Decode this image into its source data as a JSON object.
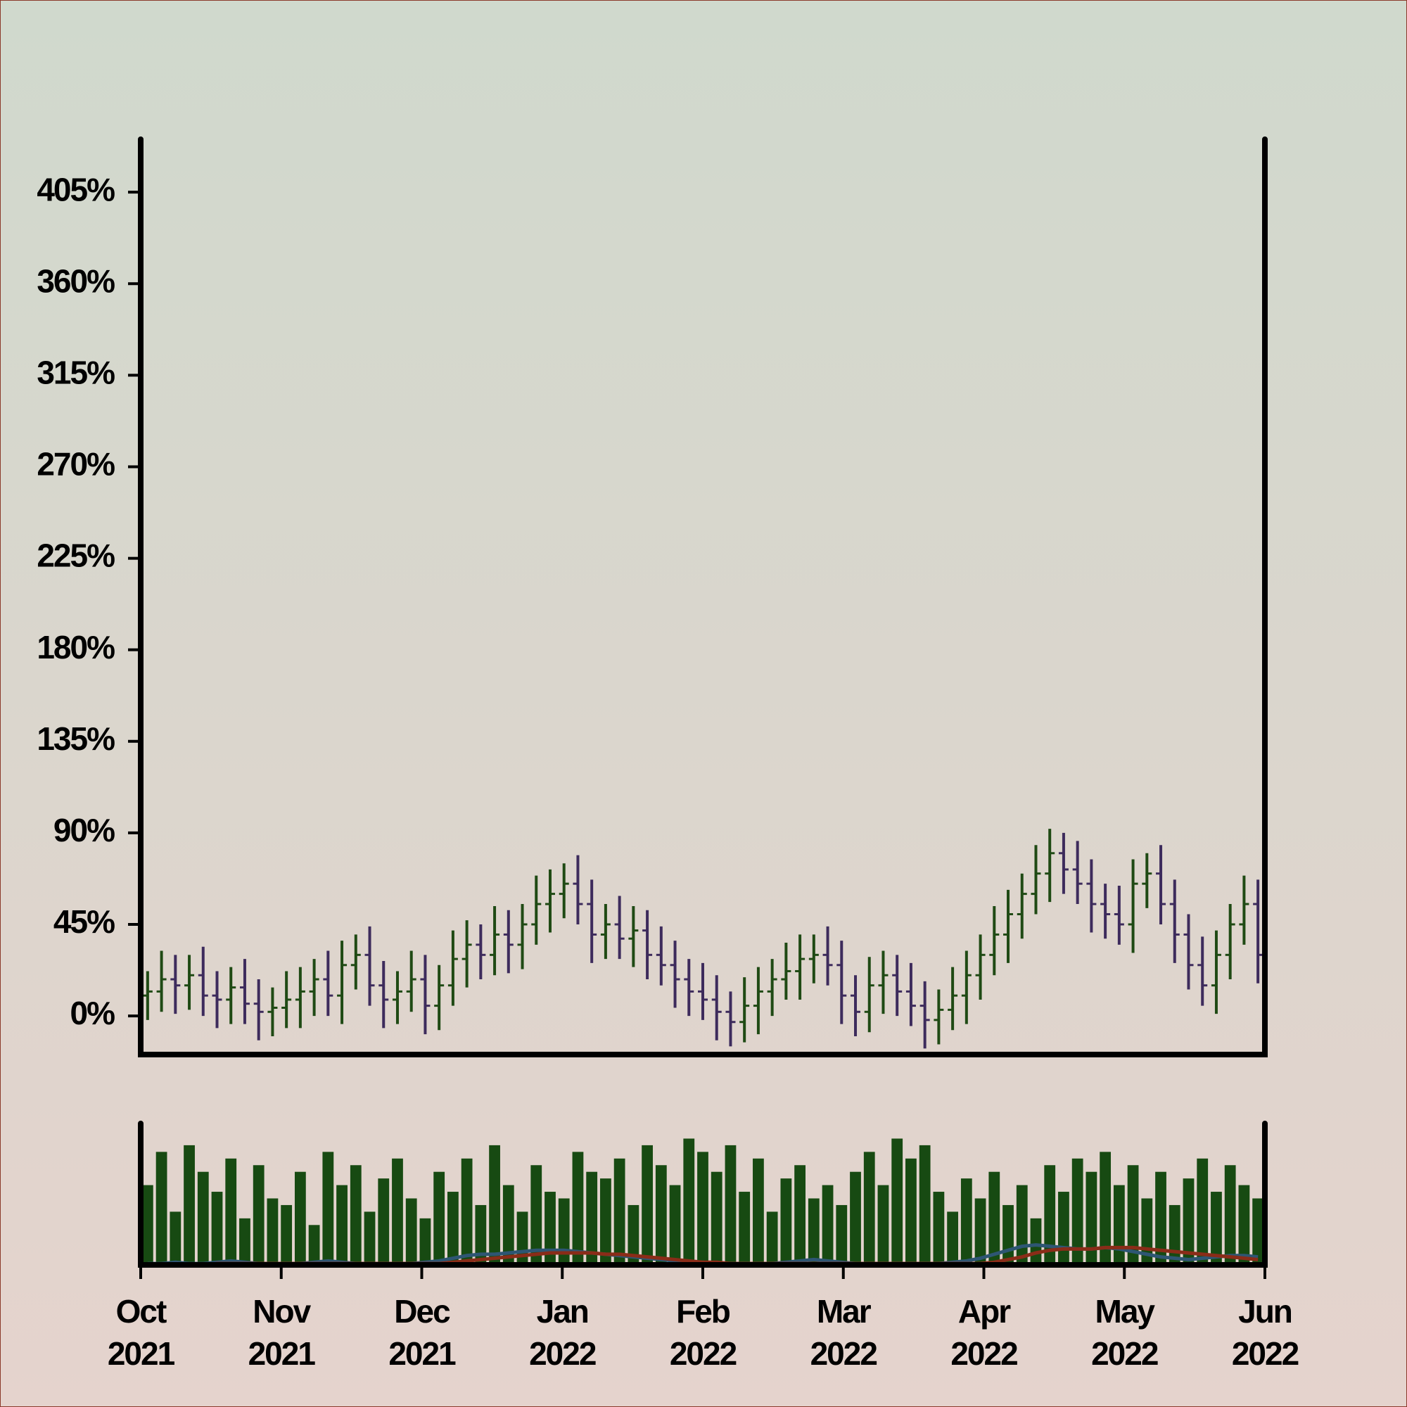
{
  "chart_data": {
    "type": "ohlc",
    "ylim": [
      -19,
      431
    ],
    "yticks": [
      {
        "value": 0,
        "label": "0%"
      },
      {
        "value": 45,
        "label": "45%"
      },
      {
        "value": 90,
        "label": "90%"
      },
      {
        "value": 135,
        "label": "135%"
      },
      {
        "value": 180,
        "label": "180%"
      },
      {
        "value": 225,
        "label": "225%"
      },
      {
        "value": 270,
        "label": "270%"
      },
      {
        "value": 315,
        "label": "315%"
      },
      {
        "value": 360,
        "label": "360%"
      },
      {
        "value": 405,
        "label": "405%"
      }
    ],
    "xlim": [
      "2021-10",
      "2022-06"
    ],
    "xticks": [
      {
        "value": "2021-10",
        "label": [
          "Oct",
          "2021"
        ]
      },
      {
        "value": "2021-11",
        "label": [
          "Nov",
          "2021"
        ]
      },
      {
        "value": "2021-12",
        "label": [
          "Dec",
          "2021"
        ]
      },
      {
        "value": "2022-01",
        "label": [
          "Jan",
          "2022"
        ]
      },
      {
        "value": "2022-02",
        "label": [
          "Feb",
          "2022"
        ]
      },
      {
        "value": "2022-03",
        "label": [
          "Mar",
          "2022"
        ]
      },
      {
        "value": "2022-04",
        "label": [
          "Apr",
          "2022"
        ]
      },
      {
        "value": "2022-05",
        "label": [
          "May",
          "2022"
        ]
      },
      {
        "value": "2022-06",
        "label": [
          "Jun",
          "2022"
        ]
      }
    ],
    "up_color": "#1f4a14",
    "down_color": "#3d2b5c",
    "open": [
      10,
      12,
      18,
      15,
      20,
      10,
      8,
      14,
      6,
      2,
      4,
      8,
      12,
      18,
      10,
      25,
      30,
      15,
      8,
      12,
      18,
      5,
      15,
      28,
      35,
      30,
      40,
      35,
      45,
      55,
      60,
      65,
      55,
      40,
      45,
      38,
      42,
      30,
      25,
      18,
      12,
      8,
      2,
      -3,
      5,
      12,
      18,
      22,
      28,
      30,
      25,
      10,
      2,
      15,
      20,
      12,
      5,
      -2,
      3,
      10,
      20,
      30,
      40,
      50,
      60,
      70,
      80,
      72,
      65,
      55,
      50,
      45,
      65,
      70,
      55,
      40,
      25,
      15,
      30,
      45,
      55
    ],
    "high": [
      22,
      32,
      30,
      30,
      34,
      22,
      24,
      28,
      18,
      14,
      22,
      24,
      28,
      32,
      37,
      40,
      44,
      27,
      22,
      32,
      30,
      25,
      42,
      47,
      45,
      54,
      52,
      55,
      69,
      72,
      75,
      79,
      67,
      55,
      59,
      54,
      52,
      44,
      37,
      28,
      26,
      20,
      12,
      19,
      24,
      28,
      36,
      40,
      40,
      44,
      37,
      20,
      29,
      32,
      30,
      26,
      17,
      13,
      24,
      32,
      40,
      54,
      62,
      70,
      84,
      92,
      90,
      86,
      77,
      65,
      64,
      77,
      80,
      84,
      67,
      50,
      39,
      42,
      55,
      69,
      67
    ],
    "low": [
      -2,
      2,
      1,
      3,
      0,
      -6,
      -4,
      -4,
      -12,
      -10,
      -6,
      -6,
      0,
      0,
      -4,
      13,
      5,
      -6,
      -4,
      2,
      -9,
      -7,
      5,
      14,
      18,
      20,
      21,
      23,
      35,
      41,
      48,
      45,
      26,
      28,
      28,
      24,
      18,
      15,
      4,
      0,
      -2,
      -12,
      -15,
      -13,
      -9,
      0,
      8,
      8,
      16,
      15,
      -4,
      -10,
      -8,
      1,
      0,
      -5,
      -16,
      -14,
      -7,
      -4,
      8,
      20,
      26,
      38,
      50,
      56,
      60,
      55,
      41,
      38,
      35,
      31,
      53,
      45,
      26,
      13,
      5,
      1,
      18,
      35,
      16
    ],
    "close": [
      12,
      18,
      15,
      20,
      10,
      8,
      14,
      6,
      2,
      4,
      8,
      12,
      18,
      10,
      25,
      30,
      15,
      8,
      12,
      18,
      5,
      15,
      28,
      35,
      30,
      40,
      35,
      45,
      55,
      60,
      65,
      55,
      40,
      45,
      38,
      42,
      30,
      25,
      18,
      12,
      8,
      2,
      -3,
      5,
      12,
      18,
      22,
      28,
      30,
      25,
      10,
      2,
      15,
      20,
      12,
      5,
      -2,
      3,
      10,
      20,
      30,
      40,
      50,
      60,
      70,
      80,
      72,
      65,
      55,
      50,
      45,
      65,
      70,
      55,
      40,
      25,
      15,
      30,
      45,
      55,
      30
    ],
    "volume": {
      "color": "#174a12",
      "ylim": [
        0,
        100
      ],
      "values": [
        60,
        85,
        40,
        90,
        70,
        55,
        80,
        35,
        75,
        50,
        45,
        70,
        30,
        85,
        60,
        75,
        40,
        65,
        80,
        50,
        35,
        70,
        55,
        80,
        45,
        90,
        60,
        40,
        75,
        55,
        50,
        85,
        70,
        65,
        80,
        45,
        90,
        75,
        60,
        95,
        85,
        70,
        90,
        55,
        80,
        40,
        65,
        75,
        50,
        60,
        45,
        70,
        85,
        60,
        95,
        80,
        90,
        55,
        40,
        65,
        50,
        70,
        45,
        60,
        35,
        75,
        55,
        80,
        70,
        85,
        60,
        75,
        50,
        70,
        45,
        65,
        80,
        55,
        75,
        60,
        50
      ]
    },
    "moving_averages": [
      {
        "color": "#2e5673",
        "values": [
          1,
          1,
          2,
          1,
          1,
          2,
          3,
          2,
          1,
          1,
          1,
          1,
          2,
          3,
          2,
          1,
          1,
          1,
          1,
          1,
          2,
          3,
          5,
          7,
          8,
          8,
          9,
          10,
          11,
          11,
          11,
          10,
          9,
          8,
          7,
          6,
          5,
          4,
          3,
          2,
          2,
          1,
          1,
          1,
          1,
          1,
          2,
          3,
          4,
          3,
          2,
          1,
          1,
          1,
          1,
          1,
          1,
          1,
          2,
          3,
          5,
          8,
          11,
          14,
          15,
          14,
          13,
          12,
          12,
          13,
          12,
          10,
          8,
          6,
          5,
          4,
          5,
          6,
          7,
          7,
          6
        ]
      },
      {
        "color": "#8a2c18",
        "values": [
          0,
          0,
          0,
          0,
          0,
          1,
          1,
          1,
          1,
          1,
          1,
          1,
          1,
          1,
          1,
          1,
          1,
          1,
          1,
          1,
          1,
          1,
          2,
          3,
          4,
          5,
          6,
          7,
          8,
          9,
          9,
          9,
          9,
          8,
          8,
          7,
          6,
          5,
          4,
          3,
          2,
          2,
          1,
          1,
          1,
          1,
          1,
          1,
          1,
          1,
          1,
          1,
          1,
          1,
          1,
          1,
          1,
          1,
          1,
          1,
          1,
          2,
          4,
          6,
          9,
          11,
          12,
          12,
          12,
          13,
          13,
          13,
          12,
          11,
          10,
          9,
          8,
          7,
          6,
          5,
          4
        ]
      }
    ]
  }
}
